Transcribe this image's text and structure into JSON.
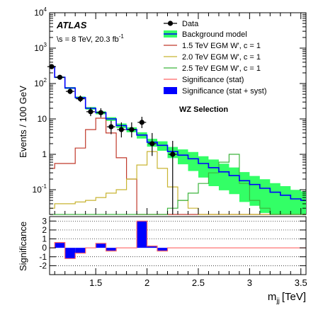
{
  "chart_data": {
    "type": "line",
    "experiment": "ATLAS",
    "energy_label": "\\s = 8 TeV, 20.3 fb",
    "lumi_superscript": "-1",
    "selection": "WZ Selection",
    "ylabel_top": "Events / 100 GeV",
    "ylabel_bottom": "Significance",
    "xlabel_main": "m",
    "xlabel_sub": "jj",
    "xlabel_unit": "[TeV]",
    "xlim": [
      1.05,
      3.55
    ],
    "ylim_top": [
      0.02,
      10000
    ],
    "ylim_bottom": [
      -3,
      3.5
    ],
    "y_scale_top": "log",
    "x_ticks": [
      "1.5",
      "2",
      "2.5",
      "3",
      "3.5"
    ],
    "y_ticks_top": [
      {
        "v": 10000,
        "base": "10",
        "exp": "4"
      },
      {
        "v": 1000,
        "base": "10",
        "exp": "3"
      },
      {
        "v": 100,
        "base": "10",
        "exp": "2"
      },
      {
        "v": 10,
        "base": "10",
        "exp": ""
      },
      {
        "v": 1,
        "base": "1",
        "exp": ""
      },
      {
        "v": 0.1,
        "base": "10",
        "exp": "-1"
      }
    ],
    "y_ticks_bottom": [
      "3",
      "2",
      "1",
      "0",
      "-1",
      "-2"
    ],
    "legend": {
      "data": "Data",
      "background": "Background model",
      "sig15": "1.5 TeV EGM W', c = 1",
      "sig20": "2.0 TeV EGM W', c = 1",
      "sig25": "2.5 TeV EGM W', c = 1",
      "signif_stat": "Significance (stat)",
      "signif_syst": "Significance (stat + syst)"
    },
    "colors": {
      "background_line": "#0000ff",
      "background_band": "#33ff66",
      "sig15": "#c0392b",
      "sig20": "#c8b432",
      "sig25": "#3cb43c",
      "signif_stat": "#ff6666",
      "signif_syst": "#0000ff",
      "data": "#000000"
    },
    "bin_edges": [
      1.05,
      1.1,
      1.2,
      1.3,
      1.4,
      1.5,
      1.6,
      1.7,
      1.8,
      1.9,
      2.0,
      2.1,
      2.2,
      2.3,
      2.4,
      2.5,
      2.6,
      2.7,
      2.8,
      2.9,
      3.0,
      3.1,
      3.2,
      3.3,
      3.4,
      3.5,
      3.55
    ],
    "background": [
      300,
      150,
      75,
      40,
      20,
      15,
      10,
      6.5,
      5,
      3.5,
      2.2,
      1.8,
      1.2,
      0.95,
      0.75,
      0.55,
      0.42,
      0.32,
      0.25,
      0.18,
      0.14,
      0.11,
      0.085,
      0.07,
      0.055,
      0.05
    ],
    "background_unc": [
      0.05,
      0.05,
      0.06,
      0.07,
      0.08,
      0.1,
      0.12,
      0.14,
      0.16,
      0.2,
      0.25,
      0.3,
      0.35,
      0.45,
      0.55,
      0.6,
      0.7,
      0.7,
      0.7,
      0.75,
      0.75,
      0.8,
      0.8,
      0.8,
      0.8,
      0.8
    ],
    "data_points": [
      {
        "x": 1.07,
        "y": 300,
        "lo": 270,
        "hi": 335
      },
      {
        "x": 1.15,
        "y": 150,
        "lo": 130,
        "hi": 172
      },
      {
        "x": 1.25,
        "y": 60,
        "lo": 50,
        "hi": 72
      },
      {
        "x": 1.35,
        "y": 37,
        "lo": 30,
        "hi": 46
      },
      {
        "x": 1.45,
        "y": 16,
        "lo": 12,
        "hi": 21
      },
      {
        "x": 1.55,
        "y": 15,
        "lo": 11,
        "hi": 20
      },
      {
        "x": 1.65,
        "y": 6,
        "lo": 3.7,
        "hi": 9
      },
      {
        "x": 1.75,
        "y": 5,
        "lo": 3,
        "hi": 8
      },
      {
        "x": 1.85,
        "y": 5,
        "lo": 3,
        "hi": 8
      },
      {
        "x": 1.95,
        "y": 8,
        "lo": 5.5,
        "hi": 11.5
      },
      {
        "x": 2.05,
        "y": 2,
        "lo": 0.9,
        "hi": 4
      },
      {
        "x": 2.25,
        "y": 1,
        "lo": 0.02,
        "hi": 2.4
      }
    ],
    "signal_15": [
      0.4,
      0.55,
      0.55,
      1.5,
      5,
      10.5,
      4,
      0.8,
      0.2,
      0.02,
      0.02,
      0.02,
      0.02,
      0.02,
      0.02,
      0.02,
      0.02,
      0.02,
      0.02,
      0.02,
      0.02,
      0.02,
      0.02,
      0.02,
      0.02,
      0.02
    ],
    "signal_20": [
      0.03,
      0.04,
      0.04,
      0.045,
      0.05,
      0.06,
      0.08,
      0.1,
      0.2,
      0.5,
      1.2,
      0.4,
      0.12,
      0.05,
      0.03,
      0.02,
      0.02,
      0.02,
      0.02,
      0.02,
      0.02,
      0.02,
      0.02,
      0.02,
      0.02,
      0.02
    ],
    "signal_25": [
      0.02,
      0.02,
      0.02,
      0.02,
      0.02,
      0.02,
      0.02,
      0.02,
      0.02,
      0.02,
      0.02,
      0.02,
      0.03,
      0.05,
      0.08,
      0.15,
      0.3,
      0.6,
      1,
      0.15,
      0.05,
      0.03,
      0.02,
      0.02,
      0.02,
      0.02
    ],
    "significance": [
      0,
      0.6,
      -1.2,
      -0.6,
      0,
      0.5,
      -0.35,
      0,
      0,
      3,
      0.2,
      -0.35,
      0,
      0,
      0,
      0,
      0,
      0,
      0,
      0,
      0,
      0,
      0,
      0,
      0,
      0
    ]
  }
}
